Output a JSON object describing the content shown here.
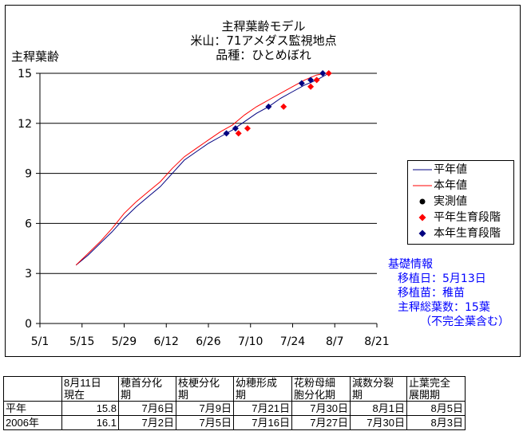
{
  "chart_data": {
    "type": "line",
    "title": [
      "主稈葉齢モデル",
      "米山：71アメダス監視地点",
      "品種：ひとめぼれ"
    ],
    "ylabel": "主稈葉齢",
    "ylim": [
      0,
      15
    ],
    "yticks": [
      0,
      3,
      6,
      9,
      12,
      15
    ],
    "xticks": [
      "5/1",
      "5/15",
      "5/29",
      "6/12",
      "6/26",
      "7/10",
      "7/24",
      "8/7",
      "8/21"
    ],
    "xlim": [
      "5/1",
      "8/21"
    ],
    "grid": "horizontal",
    "legend_position": "right",
    "series": [
      {
        "name": "平年値",
        "color": "#000080",
        "style": "line",
        "x": [
          "5/13",
          "5/17",
          "5/21",
          "5/25",
          "5/29",
          "6/2",
          "6/6",
          "6/10",
          "6/14",
          "6/18",
          "6/22",
          "6/26",
          "6/30",
          "7/4",
          "7/8",
          "7/12",
          "7/16",
          "7/20",
          "7/24",
          "7/28",
          "8/1",
          "8/5"
        ],
        "y": [
          3.5,
          4.1,
          4.8,
          5.5,
          6.3,
          7.0,
          7.6,
          8.2,
          9.0,
          9.8,
          10.3,
          10.8,
          11.2,
          11.6,
          12.1,
          12.6,
          13.0,
          13.5,
          13.9,
          14.3,
          14.6,
          15.0
        ]
      },
      {
        "name": "本年値",
        "color": "#ff0000",
        "style": "line",
        "x": [
          "5/13",
          "5/17",
          "5/21",
          "5/25",
          "5/29",
          "6/2",
          "6/6",
          "6/10",
          "6/14",
          "6/18",
          "6/22",
          "6/26",
          "6/30",
          "7/4",
          "7/8",
          "7/12",
          "7/16",
          "7/20",
          "7/24",
          "7/28",
          "8/1",
          "8/4"
        ],
        "y": [
          3.5,
          4.2,
          4.9,
          5.7,
          6.6,
          7.3,
          7.9,
          8.5,
          9.3,
          10.0,
          10.5,
          11.0,
          11.5,
          11.9,
          12.5,
          13.0,
          13.4,
          13.8,
          14.2,
          14.6,
          14.9,
          15.0
        ]
      },
      {
        "name": "実測値",
        "color": "#000000",
        "style": "circle",
        "x": [],
        "y": []
      },
      {
        "name": "平年生育段階",
        "color": "#ff0000",
        "style": "diamond",
        "x": [
          "7/6",
          "7/9",
          "7/21",
          "7/30",
          "8/1",
          "8/5"
        ],
        "y": [
          11.4,
          11.7,
          13.0,
          14.2,
          14.6,
          15.0
        ]
      },
      {
        "name": "本年生育段階",
        "color": "#000080",
        "style": "diamond",
        "x": [
          "7/2",
          "7/5",
          "7/16",
          "7/27",
          "7/30",
          "8/3"
        ],
        "y": [
          11.4,
          11.7,
          13.0,
          14.4,
          14.6,
          15.0
        ]
      }
    ]
  },
  "info": {
    "heading": "基礎情報",
    "lines": [
      "移植日：5月13日",
      "移植苗：稚苗",
      "主稈総葉数：15葉",
      "（不完全葉含む）"
    ]
  },
  "stage_table": {
    "headers": [
      "8月11日\n現在",
      "穂首分化\n期",
      "枝梗分化\n期",
      "幼穂形成\n期",
      "花粉母細\n胞分化期",
      "減数分裂\n期",
      "止葉完全\n展開期"
    ],
    "rows": [
      {
        "label": "平年",
        "cells": [
          "15.8",
          "7月6日",
          "7月9日",
          "7月21日",
          "7月30日",
          "8月1日",
          "8月5日"
        ]
      },
      {
        "label": "2006年",
        "cells": [
          "16.1",
          "7月2日",
          "7月5日",
          "7月16日",
          "7月27日",
          "7月30日",
          "8月3日"
        ]
      }
    ]
  }
}
